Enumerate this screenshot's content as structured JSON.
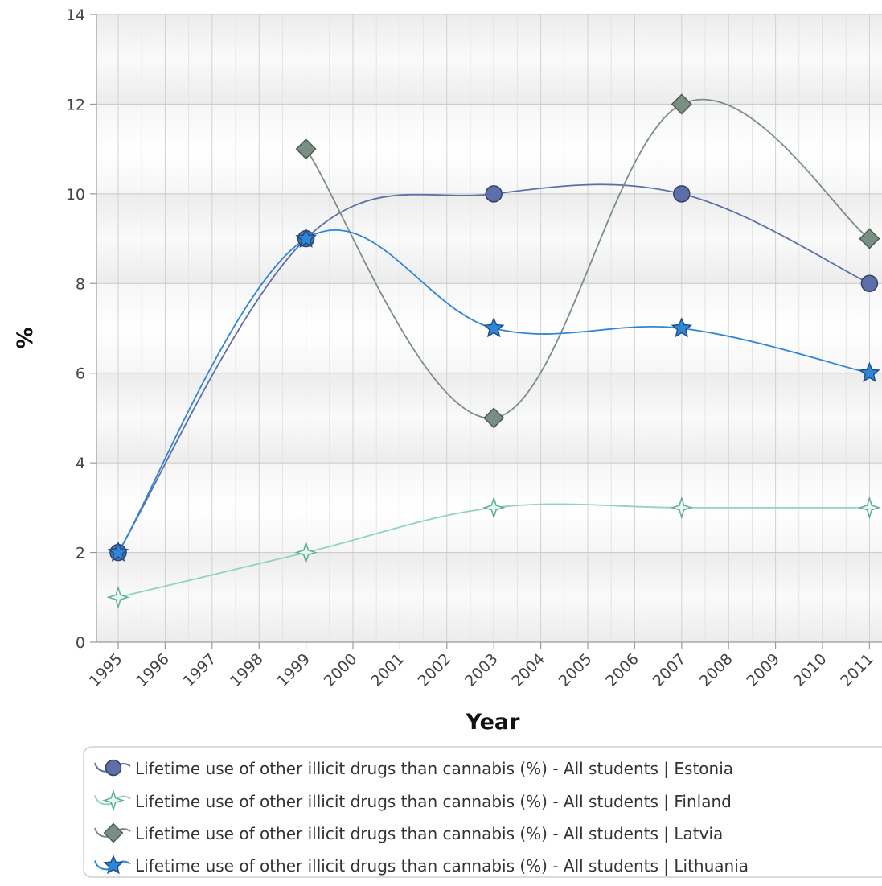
{
  "chart_data": {
    "type": "line",
    "title": "",
    "xlabel": "Year",
    "ylabel": "%",
    "ylim": [
      0,
      14
    ],
    "yticks": [
      0,
      2,
      4,
      6,
      8,
      10,
      12,
      14
    ],
    "x": [
      "1995",
      "1996",
      "1997",
      "1998",
      "1999",
      "2000",
      "2001",
      "2002",
      "2003",
      "2004",
      "2005",
      "2006",
      "2007",
      "2008",
      "2009",
      "2010",
      "2011"
    ],
    "grid": true,
    "legend_position": "bottom",
    "series": [
      {
        "name": "Lifetime use of other illicit drugs than cannabis (%) - All students | Estonia",
        "color": "#5d6fa8",
        "marker": "circle",
        "points": [
          {
            "x": "1995",
            "y": 2
          },
          {
            "x": "1999",
            "y": 9
          },
          {
            "x": "2003",
            "y": 10
          },
          {
            "x": "2007",
            "y": 10
          },
          {
            "x": "2011",
            "y": 8
          }
        ]
      },
      {
        "name": "Lifetime use of other illicit drugs than cannabis (%) - All students | Finland",
        "color": "#8fd4bd",
        "marker": "star4",
        "points": [
          {
            "x": "1995",
            "y": 1
          },
          {
            "x": "1999",
            "y": 2
          },
          {
            "x": "2003",
            "y": 3
          },
          {
            "x": "2007",
            "y": 3
          },
          {
            "x": "2011",
            "y": 3
          }
        ]
      },
      {
        "name": "Lifetime use of other illicit drugs than cannabis (%) - All students | Latvia",
        "color": "#7a8f84",
        "marker": "diamond",
        "points": [
          {
            "x": "1999",
            "y": 11
          },
          {
            "x": "2003",
            "y": 5
          },
          {
            "x": "2007",
            "y": 12
          },
          {
            "x": "2011",
            "y": 9
          }
        ]
      },
      {
        "name": "Lifetime use of other illicit drugs than cannabis (%) - All students | Lithuania",
        "color": "#2f86d6",
        "marker": "star5",
        "points": [
          {
            "x": "1995",
            "y": 2
          },
          {
            "x": "1999",
            "y": 9
          },
          {
            "x": "2003",
            "y": 7
          },
          {
            "x": "2007",
            "y": 7
          },
          {
            "x": "2011",
            "y": 6
          }
        ]
      }
    ]
  }
}
